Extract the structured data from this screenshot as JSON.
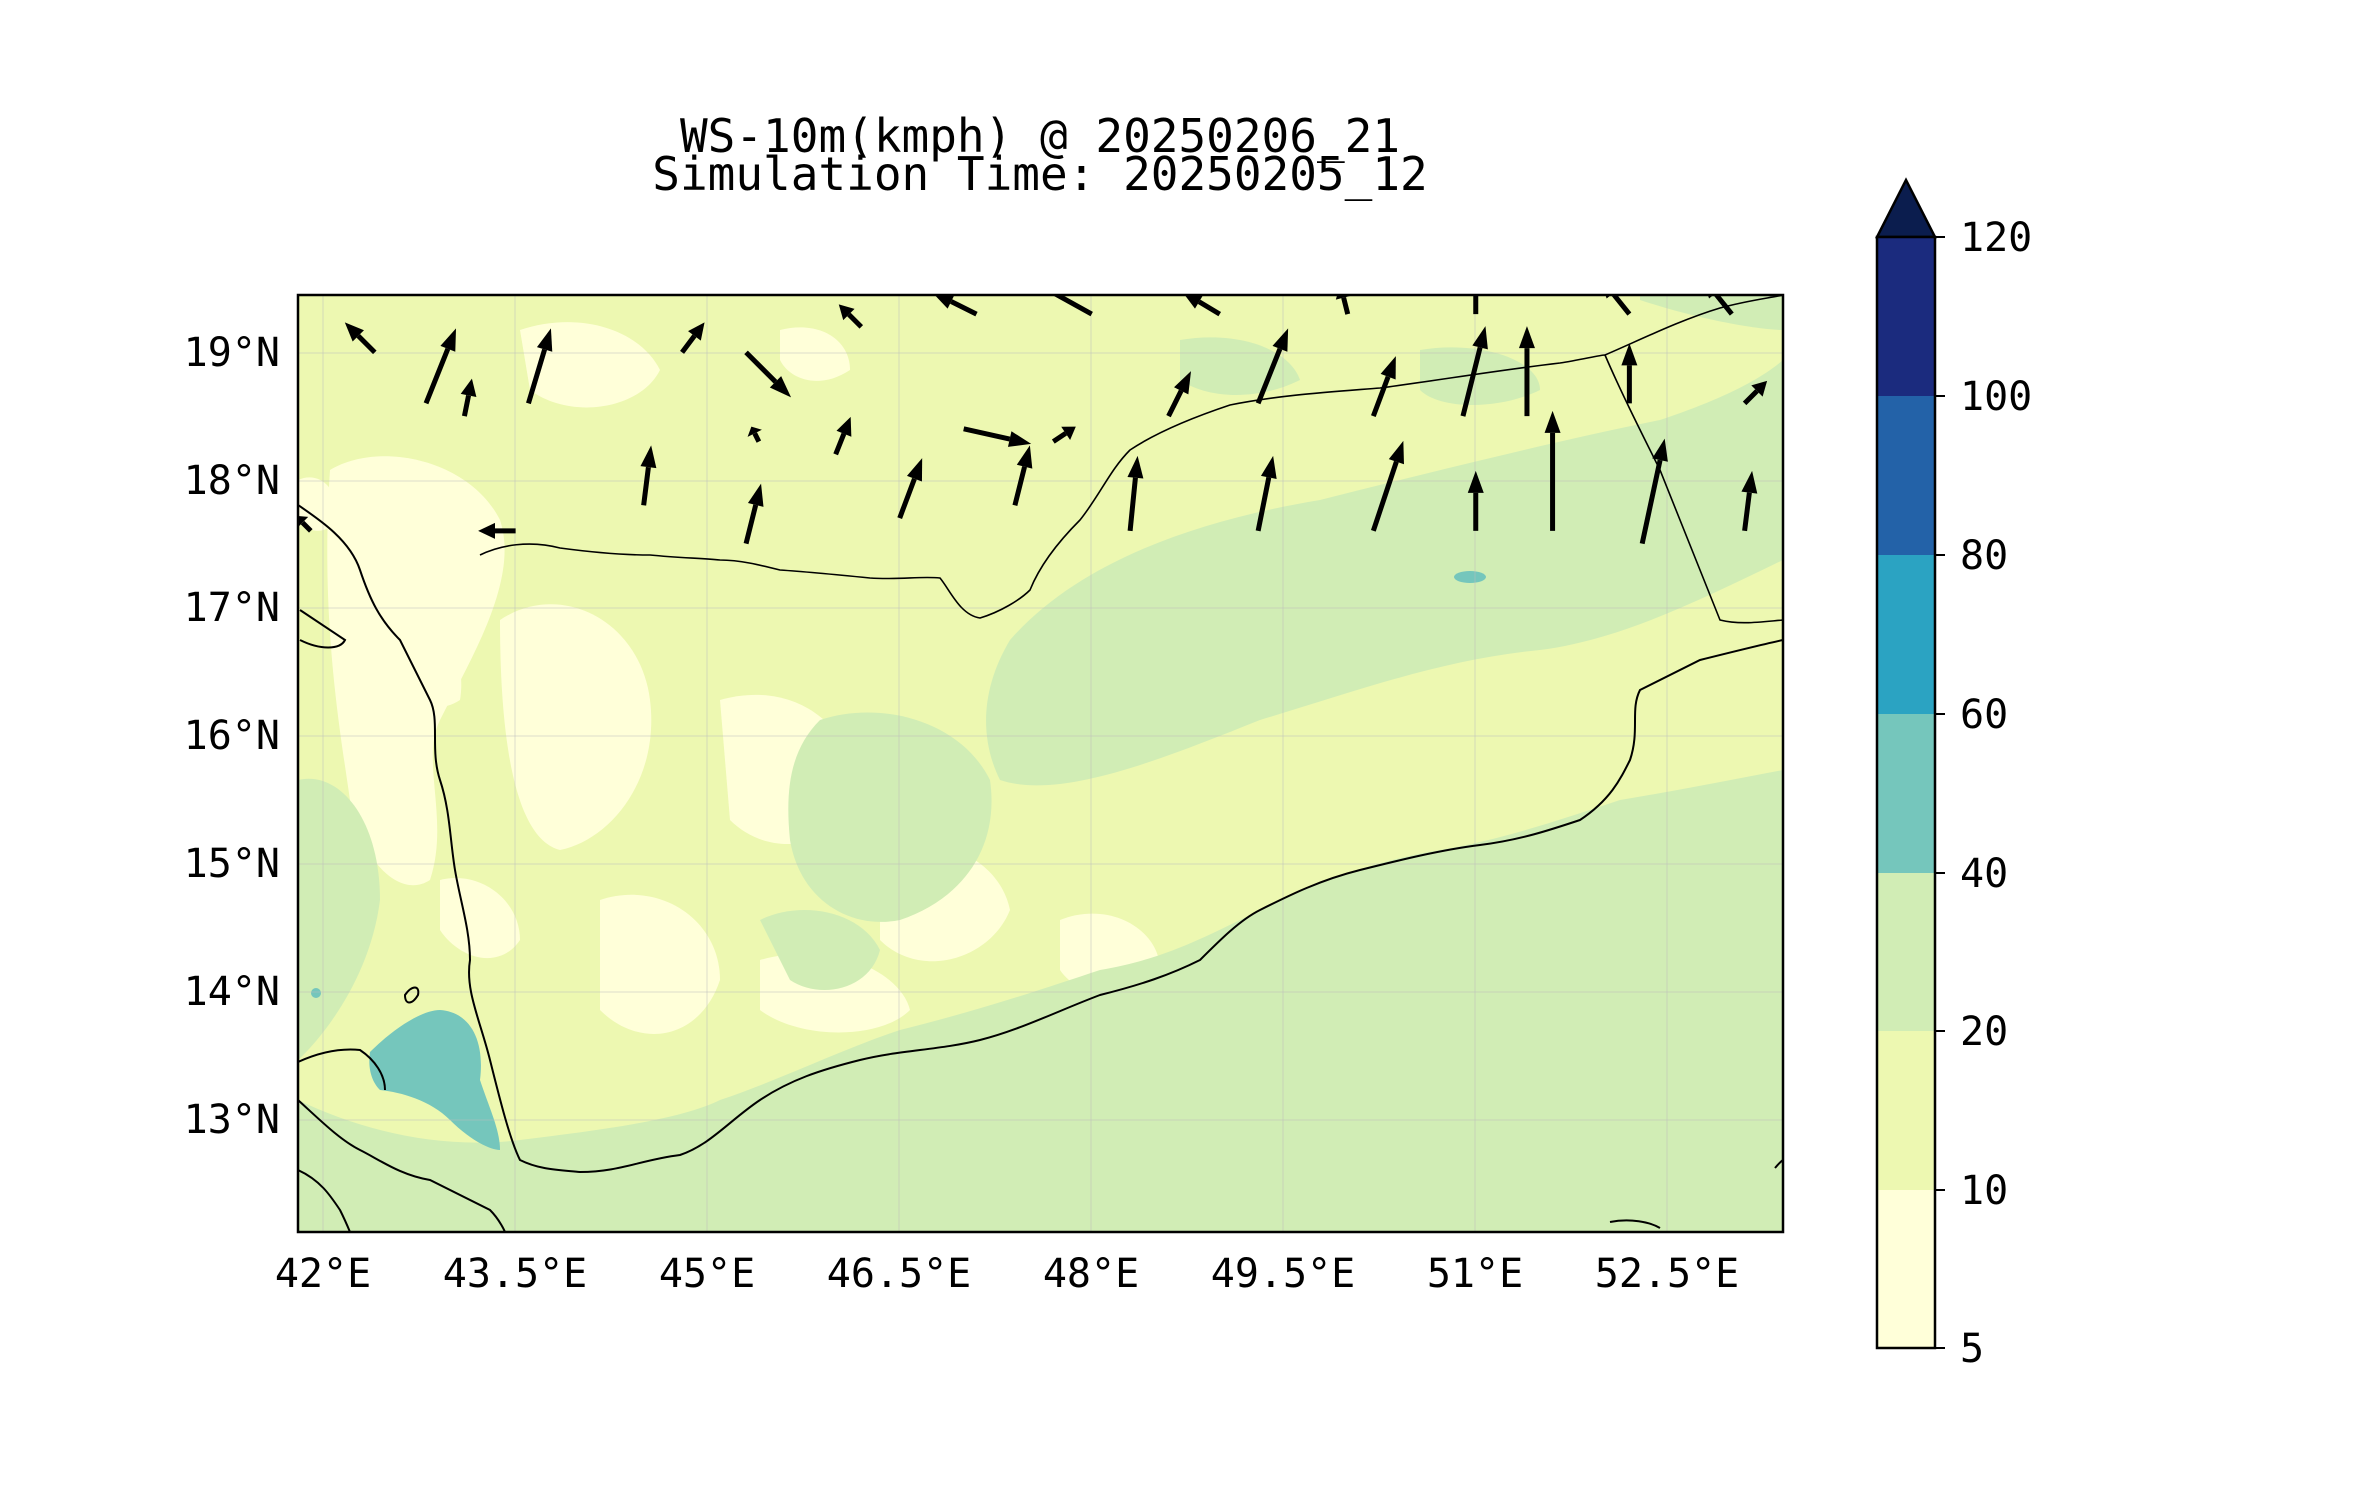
{
  "title": {
    "line1": "WS-10m(kmph) @ 20250206_21",
    "line2": "Simulation Time: 20250205_12"
  },
  "map": {
    "extent": {
      "lon": [
        41.8,
        53.4
      ],
      "lat": [
        12.1,
        19.45
      ]
    },
    "lon_ticks": [
      {
        "value": 42.0,
        "label": "42°E"
      },
      {
        "value": 43.5,
        "label": "43.5°E"
      },
      {
        "value": 45.0,
        "label": "45°E"
      },
      {
        "value": 46.5,
        "label": "46.5°E"
      },
      {
        "value": 48.0,
        "label": "48°E"
      },
      {
        "value": 49.5,
        "label": "49.5°E"
      },
      {
        "value": 51.0,
        "label": "51°E"
      },
      {
        "value": 52.5,
        "label": "52.5°E"
      }
    ],
    "lat_ticks": [
      {
        "value": 19,
        "label": "19°N"
      },
      {
        "value": 18,
        "label": "18°N"
      },
      {
        "value": 17,
        "label": "17°N"
      },
      {
        "value": 16,
        "label": "16°N"
      },
      {
        "value": 15,
        "label": "15°N"
      },
      {
        "value": 14,
        "label": "14°N"
      },
      {
        "value": 13,
        "label": "13°N"
      }
    ],
    "colors": {
      "background": "#ffffd9",
      "band_10_20": "#edf8b1",
      "band_20_40": "#d1edb5",
      "band_40_60": "#75c6bc",
      "coastline": "#000000"
    }
  },
  "colorbar": {
    "boundaries": [
      5,
      10,
      20,
      40,
      60,
      80,
      100,
      120
    ],
    "labels": [
      "5",
      "10",
      "20",
      "40",
      "60",
      "80",
      "100",
      "120"
    ],
    "colors": [
      "#ffffd9",
      "#edf8b1",
      "#d1edb5",
      "#75c6bc",
      "#2ba3c2",
      "#2362a8",
      "#1b2b7e"
    ],
    "extend_color": "#0b1d4e",
    "extend": "max"
  },
  "wind_vectors": [
    {
      "lon": 42.4,
      "lat": 19.0,
      "u": -4,
      "v": 4
    },
    {
      "lon": 42.8,
      "lat": 18.6,
      "u": 4,
      "v": 10
    },
    {
      "lon": 43.6,
      "lat": 18.6,
      "u": 3,
      "v": 10
    },
    {
      "lon": 44.8,
      "lat": 19.0,
      "u": 3,
      "v": 4
    },
    {
      "lon": 45.3,
      "lat": 19.0,
      "u": 6,
      "v": -6
    },
    {
      "lon": 46.2,
      "lat": 19.2,
      "u": -3,
      "v": 3
    },
    {
      "lon": 47.1,
      "lat": 19.3,
      "u": -6,
      "v": 3
    },
    {
      "lon": 48.0,
      "lat": 19.3,
      "u": -9,
      "v": 5
    },
    {
      "lon": 49.0,
      "lat": 19.3,
      "u": -5,
      "v": 3
    },
    {
      "lon": 50.0,
      "lat": 19.3,
      "u": -1,
      "v": 4
    },
    {
      "lon": 51.0,
      "lat": 19.3,
      "u": 0,
      "v": 5
    },
    {
      "lon": 52.2,
      "lat": 19.3,
      "u": -4,
      "v": 5
    },
    {
      "lon": 53.0,
      "lat": 19.3,
      "u": -4,
      "v": 5
    },
    {
      "lon": 43.1,
      "lat": 18.5,
      "u": 1,
      "v": 5
    },
    {
      "lon": 45.4,
      "lat": 18.3,
      "u": -1,
      "v": 2
    },
    {
      "lon": 46.0,
      "lat": 18.2,
      "u": 2,
      "v": 5
    },
    {
      "lon": 47.0,
      "lat": 18.4,
      "u": 9,
      "v": -2
    },
    {
      "lon": 47.7,
      "lat": 18.3,
      "u": 3,
      "v": 2
    },
    {
      "lon": 48.6,
      "lat": 18.5,
      "u": 3,
      "v": 6
    },
    {
      "lon": 49.3,
      "lat": 18.6,
      "u": 4,
      "v": 10
    },
    {
      "lon": 50.2,
      "lat": 18.5,
      "u": 3,
      "v": 8
    },
    {
      "lon": 50.9,
      "lat": 18.5,
      "u": 3,
      "v": 12
    },
    {
      "lon": 51.4,
      "lat": 18.5,
      "u": 0,
      "v": 12
    },
    {
      "lon": 52.2,
      "lat": 18.6,
      "u": 0,
      "v": 8
    },
    {
      "lon": 53.1,
      "lat": 18.6,
      "u": 3,
      "v": 3
    },
    {
      "lon": 41.9,
      "lat": 17.6,
      "u": -2,
      "v": 2
    },
    {
      "lon": 43.5,
      "lat": 17.6,
      "u": -5,
      "v": 0
    },
    {
      "lon": 44.5,
      "lat": 17.8,
      "u": 1,
      "v": 8
    },
    {
      "lon": 45.3,
      "lat": 17.5,
      "u": 2,
      "v": 8
    },
    {
      "lon": 46.5,
      "lat": 17.7,
      "u": 3,
      "v": 8
    },
    {
      "lon": 47.4,
      "lat": 17.8,
      "u": 2,
      "v": 8
    },
    {
      "lon": 48.3,
      "lat": 17.6,
      "u": 1,
      "v": 10
    },
    {
      "lon": 49.3,
      "lat": 17.6,
      "u": 2,
      "v": 10
    },
    {
      "lon": 50.2,
      "lat": 17.6,
      "u": 4,
      "v": 12
    },
    {
      "lon": 51.0,
      "lat": 17.6,
      "u": 0,
      "v": 8
    },
    {
      "lon": 51.6,
      "lat": 17.6,
      "u": 0,
      "v": 16
    },
    {
      "lon": 52.3,
      "lat": 17.5,
      "u": 3,
      "v": 14
    },
    {
      "lon": 53.1,
      "lat": 17.6,
      "u": 1,
      "v": 8
    }
  ]
}
